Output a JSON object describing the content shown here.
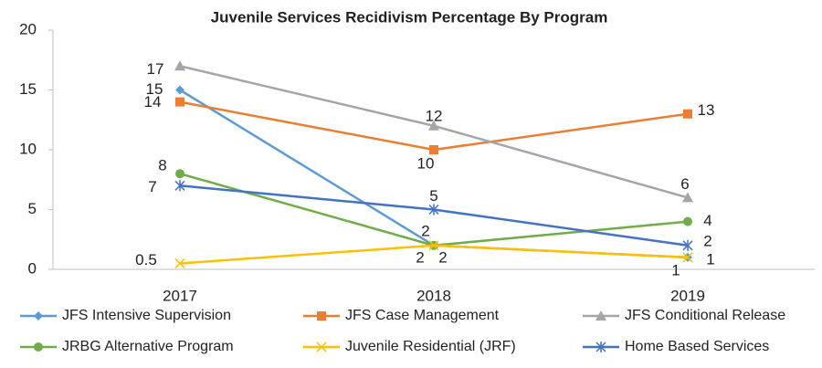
{
  "chart_data": {
    "type": "line",
    "title": "Juvenile Services Recidivism Percentage By Program",
    "categories": [
      "2017",
      "2018",
      "2019"
    ],
    "series": [
      {
        "name": "JFS Intensive Supervision",
        "color": "#5b9bd5",
        "marker": "diamond",
        "values": [
          15,
          2,
          1
        ]
      },
      {
        "name": "JFS Case Management",
        "color": "#ed7d31",
        "marker": "square",
        "values": [
          14,
          10,
          13
        ]
      },
      {
        "name": "JFS Conditional Release",
        "color": "#a5a5a5",
        "marker": "triangle",
        "values": [
          17,
          12,
          6
        ]
      },
      {
        "name": "JRBG Alternative Program",
        "color": "#70ad47",
        "marker": "circle",
        "values": [
          8,
          2,
          4
        ]
      },
      {
        "name": "Juvenile Residential (JRF)",
        "color": "#ffc000",
        "marker": "x",
        "values": [
          0.5,
          2,
          1
        ]
      },
      {
        "name": "Home Based Services",
        "color": "#4472c4",
        "marker": "star",
        "values": [
          7,
          5,
          2
        ]
      }
    ],
    "ylim": [
      0,
      20
    ],
    "yticks": [
      0,
      5,
      10,
      15,
      20
    ],
    "grid": false,
    "data_labels": true
  }
}
